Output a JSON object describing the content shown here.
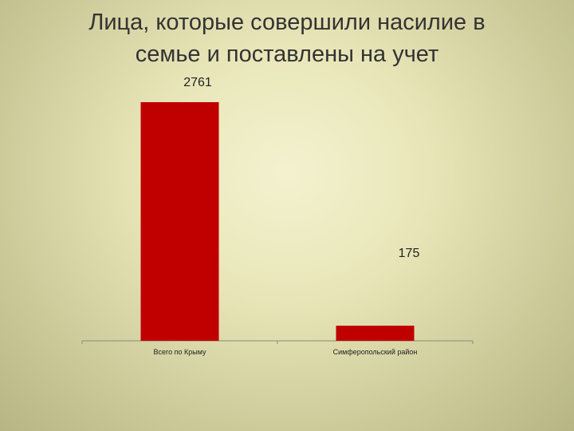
{
  "slide": {
    "title_line1": "Лица, которые совершили насилие в",
    "title_line2": "семье и поставлены на учет"
  },
  "chart_data": {
    "type": "bar",
    "title": "Лица, которые совершили насилие в семье и поставлены на учет",
    "categories": [
      "Всего по Крыму",
      "Симферопольский район"
    ],
    "values": [
      2761,
      175
    ],
    "data_labels": [
      "2761",
      "175"
    ],
    "bar_color": "#c00000",
    "xlabel": "",
    "ylabel": "",
    "ylim": [
      0,
      2761
    ],
    "grid": false,
    "legend": "none"
  }
}
